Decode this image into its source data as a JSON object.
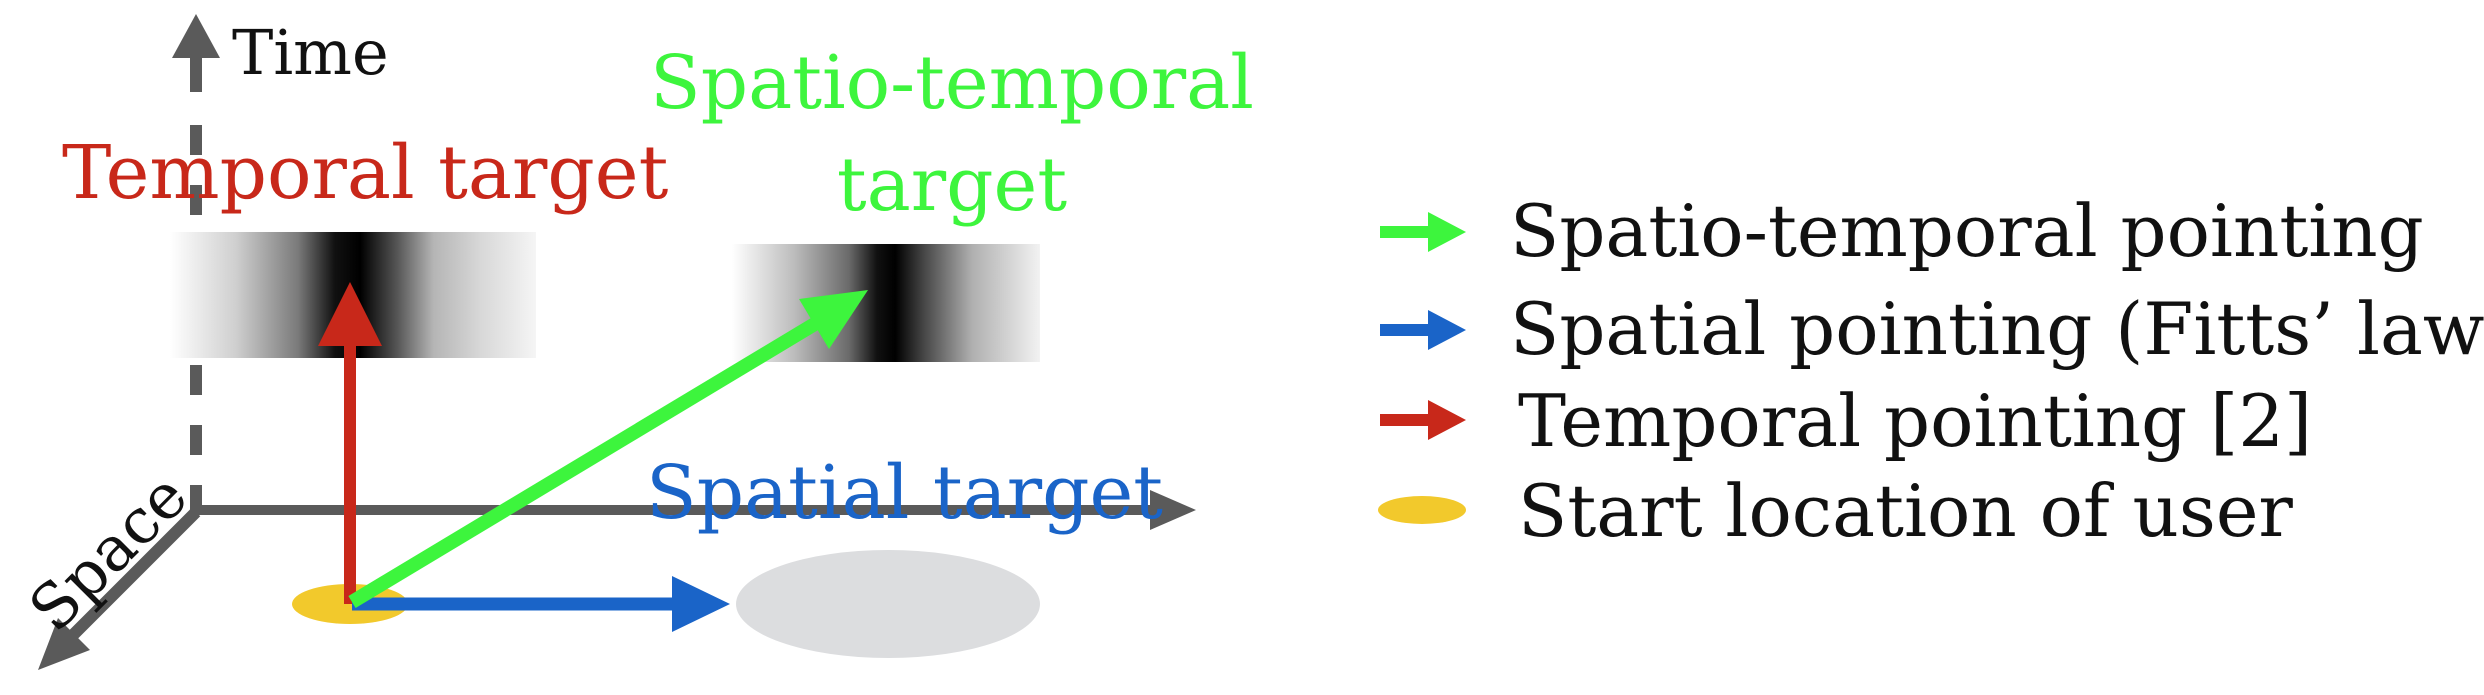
{
  "axes": {
    "time_label": "Time",
    "space_label": "Space"
  },
  "targets": {
    "temporal_label": "Temporal target",
    "spatio_temporal_label_line1": "Spatio-temporal",
    "spatio_temporal_label_line2": "target",
    "spatial_label": "Spatial target"
  },
  "legend": {
    "items": [
      {
        "label": "Spatio-temporal pointing",
        "swatch": "arrow",
        "color": "#3df53d"
      },
      {
        "label": "Spatial pointing (Fitts’ law)",
        "swatch": "arrow",
        "color": "#1a64c8"
      },
      {
        "label": "Temporal pointing [2]",
        "swatch": "arrow",
        "color": "#c8281a"
      },
      {
        "label": "Start location of user",
        "swatch": "ellipse",
        "color": "#f2c92c"
      }
    ]
  },
  "colors": {
    "green": "#3df53d",
    "blue": "#1a64c8",
    "red": "#c8281a",
    "yellow": "#f2c92c",
    "axis_gray": "#5a5a5a",
    "spatial_target_gray": "#dcdddf"
  }
}
